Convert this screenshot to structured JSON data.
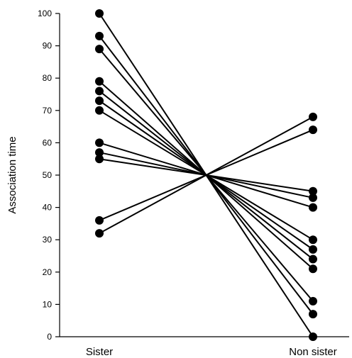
{
  "chart_data": {
    "type": "line",
    "categories": [
      "Sister",
      "Non sister"
    ],
    "ylabel": "Association time",
    "xlabel": "",
    "ylim": [
      0,
      100
    ],
    "yticks": [
      "0",
      "10",
      "20",
      "30",
      "40",
      "50",
      "60",
      "70",
      "80",
      "90",
      "100"
    ],
    "grid": false,
    "legend": "none",
    "series": [
      {
        "values": [
          100,
          0
        ]
      },
      {
        "values": [
          93,
          7
        ]
      },
      {
        "values": [
          89,
          11
        ]
      },
      {
        "values": [
          79,
          21
        ]
      },
      {
        "values": [
          76,
          24
        ]
      },
      {
        "values": [
          73,
          27
        ]
      },
      {
        "values": [
          70,
          30
        ]
      },
      {
        "values": [
          60,
          40
        ]
      },
      {
        "values": [
          57,
          43
        ]
      },
      {
        "values": [
          55,
          45
        ]
      },
      {
        "values": [
          36,
          64
        ]
      },
      {
        "values": [
          32,
          68
        ]
      }
    ]
  }
}
